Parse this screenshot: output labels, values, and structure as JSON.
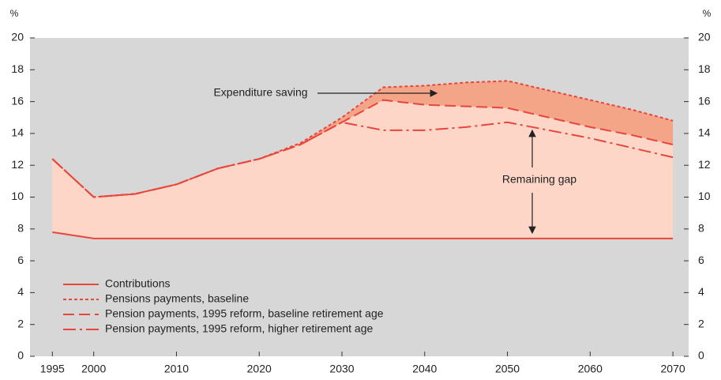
{
  "chart_data": {
    "type": "line",
    "y_unit_left": "%",
    "y_unit_right": "%",
    "x": [
      1995,
      2000,
      2005,
      2010,
      2015,
      2020,
      2025,
      2030,
      2035,
      2040,
      2045,
      2050,
      2055,
      2060,
      2065,
      2070
    ],
    "series": [
      {
        "name": "Contributions",
        "color": "#e8463c",
        "style": "solid",
        "values": [
          7.8,
          7.4,
          7.4,
          7.4,
          7.4,
          7.4,
          7.4,
          7.4,
          7.4,
          7.4,
          7.4,
          7.4,
          7.4,
          7.4,
          7.4,
          7.4
        ]
      },
      {
        "name": "Pensions payments, baseline",
        "color": "#e8463c",
        "style": "dotted",
        "values": [
          12.4,
          10.0,
          10.2,
          10.8,
          11.8,
          12.4,
          13.4,
          15.0,
          16.9,
          17.0,
          17.2,
          17.3,
          16.7,
          16.1,
          15.5,
          14.8
        ]
      },
      {
        "name": "Pension payments, 1995 reform, baseline retirement age",
        "color": "#e8463c",
        "style": "dashed",
        "values": [
          12.4,
          10.0,
          10.2,
          10.8,
          11.8,
          12.4,
          13.3,
          14.7,
          16.1,
          15.8,
          15.7,
          15.6,
          15.0,
          14.4,
          13.9,
          13.3
        ]
      },
      {
        "name": "Pension payments, 1995 reform, higher retirement age",
        "color": "#e8463c",
        "style": "dashdot",
        "values": [
          12.4,
          10.0,
          10.2,
          10.8,
          11.8,
          12.4,
          13.3,
          14.7,
          14.2,
          14.2,
          14.4,
          14.7,
          14.2,
          13.7,
          13.1,
          12.5
        ]
      }
    ],
    "area_colors": [
      "#fdd6c8",
      "#f4a487"
    ],
    "xlim": [
      1992.3,
      2071.9
    ],
    "xticks": [
      1995,
      2000,
      2010,
      2020,
      2030,
      2040,
      2050,
      2060,
      2070
    ],
    "ylim": [
      0,
      20
    ],
    "yticks": [
      0,
      2,
      4,
      6,
      8,
      10,
      12,
      14,
      16,
      18,
      20
    ],
    "y2lim": [
      0,
      20
    ],
    "y2ticks": [
      0,
      2,
      4,
      6,
      8,
      10,
      12,
      14,
      16,
      18,
      20
    ],
    "plot_background": "#d7d7d7",
    "legend": "lower left",
    "annotations": [
      "Expenditure saving",
      "Remaining gap"
    ]
  }
}
